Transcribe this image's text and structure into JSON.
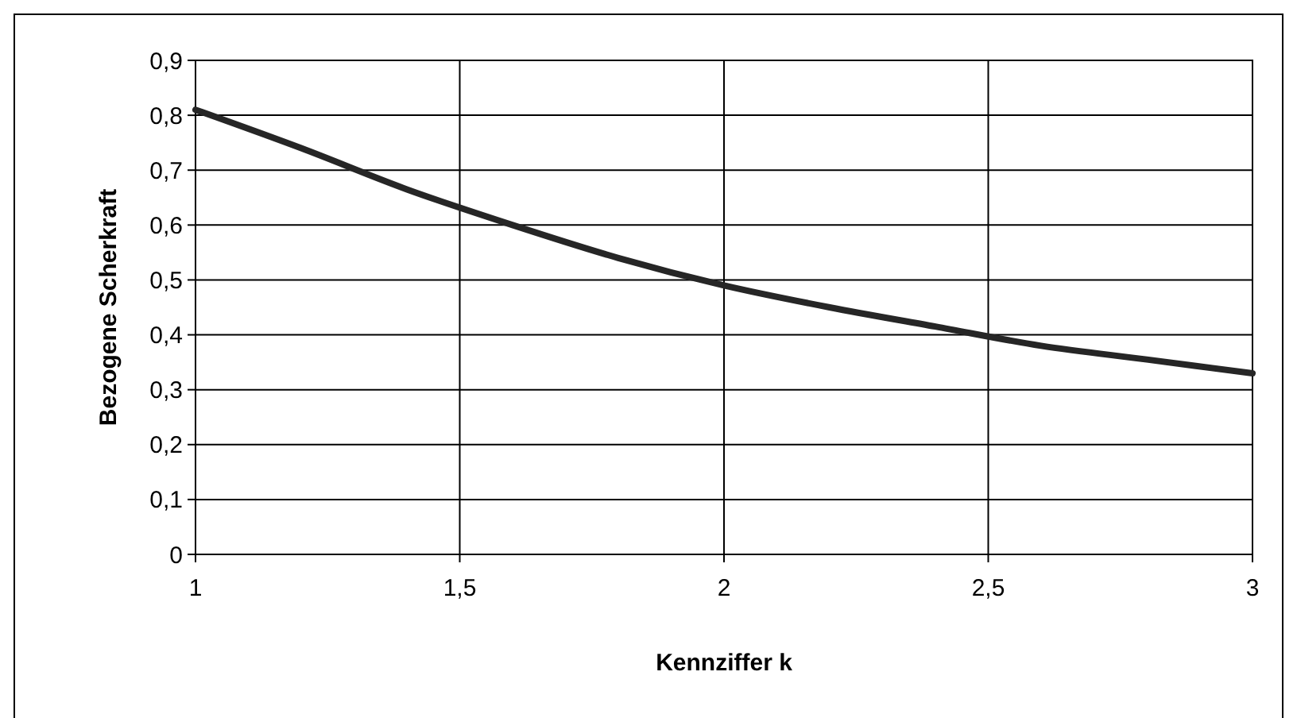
{
  "chart_data": {
    "type": "line",
    "xlabel": "Kennziffer k",
    "ylabel": "Bezogene Scherkraft",
    "x": [
      1,
      1.2,
      1.4,
      1.6,
      1.8,
      2,
      2.2,
      2.4,
      2.6,
      2.8,
      3
    ],
    "series": [
      {
        "color": "#262626",
        "values": [
          0.81,
          0.74,
          0.665,
          0.6,
          0.54,
          0.49,
          0.45,
          0.415,
          0.38,
          0.355,
          0.33
        ]
      }
    ],
    "xlim": [
      1,
      3
    ],
    "xticks": [
      1,
      {
        "value": 1.5,
        "label": "1,5"
      },
      2,
      {
        "value": 2.5,
        "label": "2,5"
      },
      3
    ],
    "ylim": [
      0,
      0.9
    ],
    "yticks": [
      0,
      {
        "value": 0.1,
        "label": "0,1"
      },
      {
        "value": 0.2,
        "label": "0,2"
      },
      {
        "value": 0.3,
        "label": "0,3"
      },
      {
        "value": 0.4,
        "label": "0,4"
      },
      {
        "value": 0.5,
        "label": "0,5"
      },
      {
        "value": 0.6,
        "label": "0,6"
      },
      {
        "value": 0.7,
        "label": "0,7"
      },
      {
        "value": 0.8,
        "label": "0,8"
      },
      {
        "value": 0.9,
        "label": "0,9"
      }
    ],
    "grid": true,
    "marker": "none",
    "line_style": "solid"
  }
}
